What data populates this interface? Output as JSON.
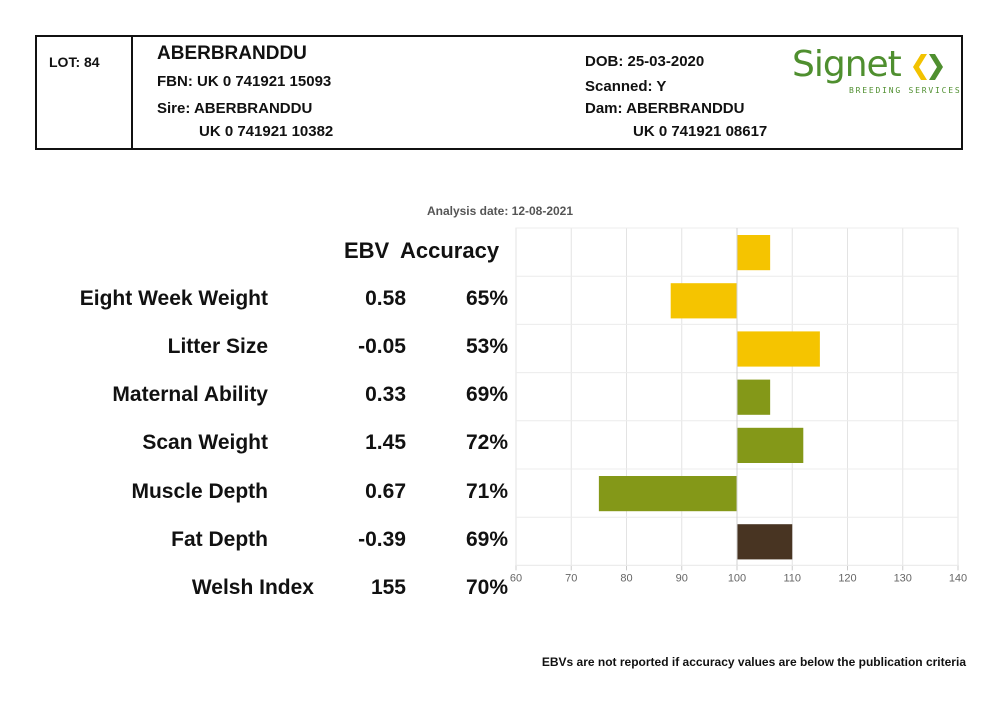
{
  "header": {
    "lot": "LOT: 84",
    "name": "ABERBRANDDU",
    "fbn": "FBN: UK 0 741921 15093",
    "sire_label": "Sire: ABERBRANDDU",
    "sire_id": "UK 0 741921 10382",
    "dob": "DOB: 25-03-2020",
    "scanned": "Scanned: Y",
    "dam_label": "Dam: ABERBRANDDU",
    "dam_id": "UK 0 741921 08617"
  },
  "logo": {
    "word": "Signet",
    "sub": "BREEDING SERVICES",
    "brand_color": "#4f8f2f",
    "mark_color": "#f2c200"
  },
  "analysis_date": "Analysis date: 12-08-2021",
  "columns": {
    "ebv": "EBV",
    "accuracy": "Accuracy"
  },
  "traits": [
    {
      "label": "Eight Week Weight",
      "ebv": "0.58",
      "accuracy": "65%"
    },
    {
      "label": "Litter Size",
      "ebv": "-0.05",
      "accuracy": "53%"
    },
    {
      "label": "Maternal Ability",
      "ebv": "0.33",
      "accuracy": "69%"
    },
    {
      "label": "Scan Weight",
      "ebv": "1.45",
      "accuracy": "72%"
    },
    {
      "label": "Muscle Depth",
      "ebv": "0.67",
      "accuracy": "71%"
    },
    {
      "label": "Fat Depth",
      "ebv": "-0.39",
      "accuracy": "69%"
    },
    {
      "label": "Welsh Index",
      "ebv": "155",
      "accuracy": "70%"
    }
  ],
  "footnote": "EBVs are not reported if accuracy values are below the publication criteria",
  "chart_data": {
    "type": "bar",
    "orientation": "horizontal",
    "baseline": 100,
    "xlim": [
      60,
      140
    ],
    "ticks": [
      60,
      70,
      80,
      90,
      100,
      110,
      120,
      130,
      140
    ],
    "tick_labels": [
      "60",
      "70",
      "80",
      "90",
      "100",
      "110",
      "120",
      "130",
      "140"
    ],
    "grid": true,
    "categories": [
      "Eight Week Weight",
      "Litter Size",
      "Maternal Ability",
      "Scan Weight",
      "Muscle Depth",
      "Fat Depth",
      "Welsh Index"
    ],
    "values": [
      106,
      88,
      115,
      106,
      112,
      75,
      110
    ],
    "colors": [
      "#f5c400",
      "#f5c400",
      "#f5c400",
      "#849818",
      "#849818",
      "#849818",
      "#483422"
    ]
  }
}
